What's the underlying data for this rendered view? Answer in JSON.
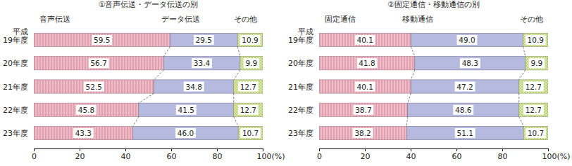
{
  "chart_data": [
    {
      "type": "bar",
      "orientation": "horizontal",
      "stacked": true,
      "data_labels": true,
      "legend": "top",
      "grid": false,
      "title": "①音声伝送・データ伝送の別",
      "categories": [
        "平成\n19年度",
        "20年度",
        "21年度",
        "22年度",
        "23年度"
      ],
      "series": [
        {
          "name": "音声伝送",
          "color": "#f5b8c6",
          "values": [
            59.5,
            56.7,
            52.5,
            45.8,
            43.3
          ],
          "value_labels": [
            "59.5",
            "56.7",
            "52.5",
            "45.8",
            "43.3"
          ]
        },
        {
          "name": "データ伝送",
          "color": "#b7badf",
          "values": [
            29.5,
            33.4,
            34.8,
            41.5,
            46.0
          ],
          "value_labels": [
            "29.5",
            "33.4",
            "34.8",
            "41.5",
            "46.0"
          ]
        },
        {
          "name": "その他",
          "color": "#dcef9e",
          "values": [
            10.9,
            9.9,
            12.7,
            12.7,
            10.7
          ],
          "value_labels": [
            "10.9",
            "9.9",
            "12.7",
            "12.7",
            "10.7"
          ]
        }
      ],
      "xlim": [
        0,
        100
      ],
      "xticks": [
        0,
        20,
        40,
        60,
        80,
        {
          "value": 100,
          "label": "100(%)"
        }
      ]
    },
    {
      "type": "bar",
      "orientation": "horizontal",
      "stacked": true,
      "data_labels": true,
      "legend": "top",
      "grid": false,
      "title": "②固定通信・移動通信の別",
      "categories": [
        "平成\n19年度",
        "20年度",
        "21年度",
        "22年度",
        "23年度"
      ],
      "series": [
        {
          "name": "固定通信",
          "color": "#f5b8c6",
          "values": [
            40.1,
            41.8,
            40.1,
            38.7,
            38.2
          ],
          "value_labels": [
            "40.1",
            "41.8",
            "40.1",
            "38.7",
            "38.2"
          ]
        },
        {
          "name": "移動通信",
          "color": "#b7badf",
          "values": [
            49.0,
            48.3,
            47.2,
            48.6,
            51.1
          ],
          "value_labels": [
            "49.0",
            "48.3",
            "47.2",
            "48.6",
            "51.1"
          ]
        },
        {
          "name": "その他",
          "color": "#dcef9e",
          "values": [
            10.9,
            9.9,
            12.7,
            12.7,
            10.7
          ],
          "value_labels": [
            "10.9",
            "9.9",
            "12.7",
            "12.7",
            "10.7"
          ]
        }
      ],
      "xlim": [
        0,
        100
      ],
      "xticks": [
        0,
        20,
        40,
        60,
        80,
        {
          "value": 100,
          "label": "100(%)"
        }
      ]
    }
  ]
}
